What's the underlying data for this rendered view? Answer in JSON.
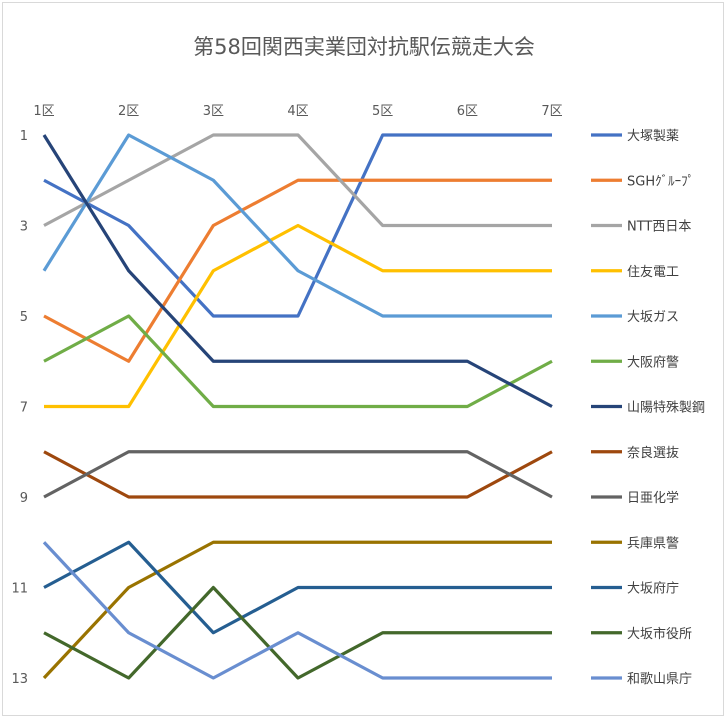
{
  "chart_data": {
    "type": "line",
    "title": "第58回関西実業団対抗駅伝競走大会",
    "categories": [
      "1区",
      "2区",
      "3区",
      "4区",
      "5区",
      "6区",
      "7区"
    ],
    "y_axis": {
      "reversed": true,
      "ylim": [
        1,
        13
      ],
      "ticks": [
        1,
        3,
        5,
        7,
        9,
        11,
        13
      ],
      "tick_labels": [
        "1",
        "3",
        "5",
        "7",
        "9",
        "11",
        "13"
      ]
    },
    "grid": false,
    "legend_position": "right",
    "series": [
      {
        "name": "大塚製薬",
        "color": "#4472c4",
        "values": [
          2,
          3,
          5,
          5,
          1,
          1,
          1
        ]
      },
      {
        "name": "SGHｸﾞﾙｰﾌﾟ",
        "color": "#ed7d31",
        "values": [
          5,
          6,
          3,
          2,
          2,
          2,
          2
        ]
      },
      {
        "name": "NTT西日本",
        "color": "#a5a5a5",
        "values": [
          3,
          2,
          1,
          1,
          3,
          3,
          3
        ]
      },
      {
        "name": "住友電工",
        "color": "#ffc000",
        "values": [
          7,
          7,
          4,
          3,
          4,
          4,
          4
        ]
      },
      {
        "name": "大坂ガス",
        "color": "#5b9bd5",
        "values": [
          4,
          1,
          2,
          4,
          5,
          5,
          5
        ]
      },
      {
        "name": "大阪府警",
        "color": "#70ad47",
        "values": [
          6,
          5,
          7,
          7,
          7,
          7,
          6
        ]
      },
      {
        "name": "山陽特殊製鋼",
        "color": "#264478",
        "values": [
          1,
          4,
          6,
          6,
          6,
          6,
          7
        ]
      },
      {
        "name": "奈良選抜",
        "color": "#9e480e",
        "values": [
          8,
          9,
          9,
          9,
          9,
          9,
          8
        ]
      },
      {
        "name": "日亜化学",
        "color": "#636363",
        "values": [
          9,
          8,
          8,
          8,
          8,
          8,
          9
        ]
      },
      {
        "name": "兵庫県警",
        "color": "#997300",
        "values": [
          13,
          11,
          10,
          10,
          10,
          10,
          10
        ]
      },
      {
        "name": "大坂府庁",
        "color": "#255e91",
        "values": [
          11,
          10,
          12,
          11,
          11,
          11,
          11
        ]
      },
      {
        "name": "大坂市役所",
        "color": "#43682b",
        "values": [
          12,
          13,
          11,
          13,
          12,
          12,
          12
        ]
      },
      {
        "name": "和歌山県庁",
        "color": "#698ed0",
        "values": [
          10,
          12,
          13,
          12,
          13,
          13,
          13
        ]
      }
    ]
  }
}
